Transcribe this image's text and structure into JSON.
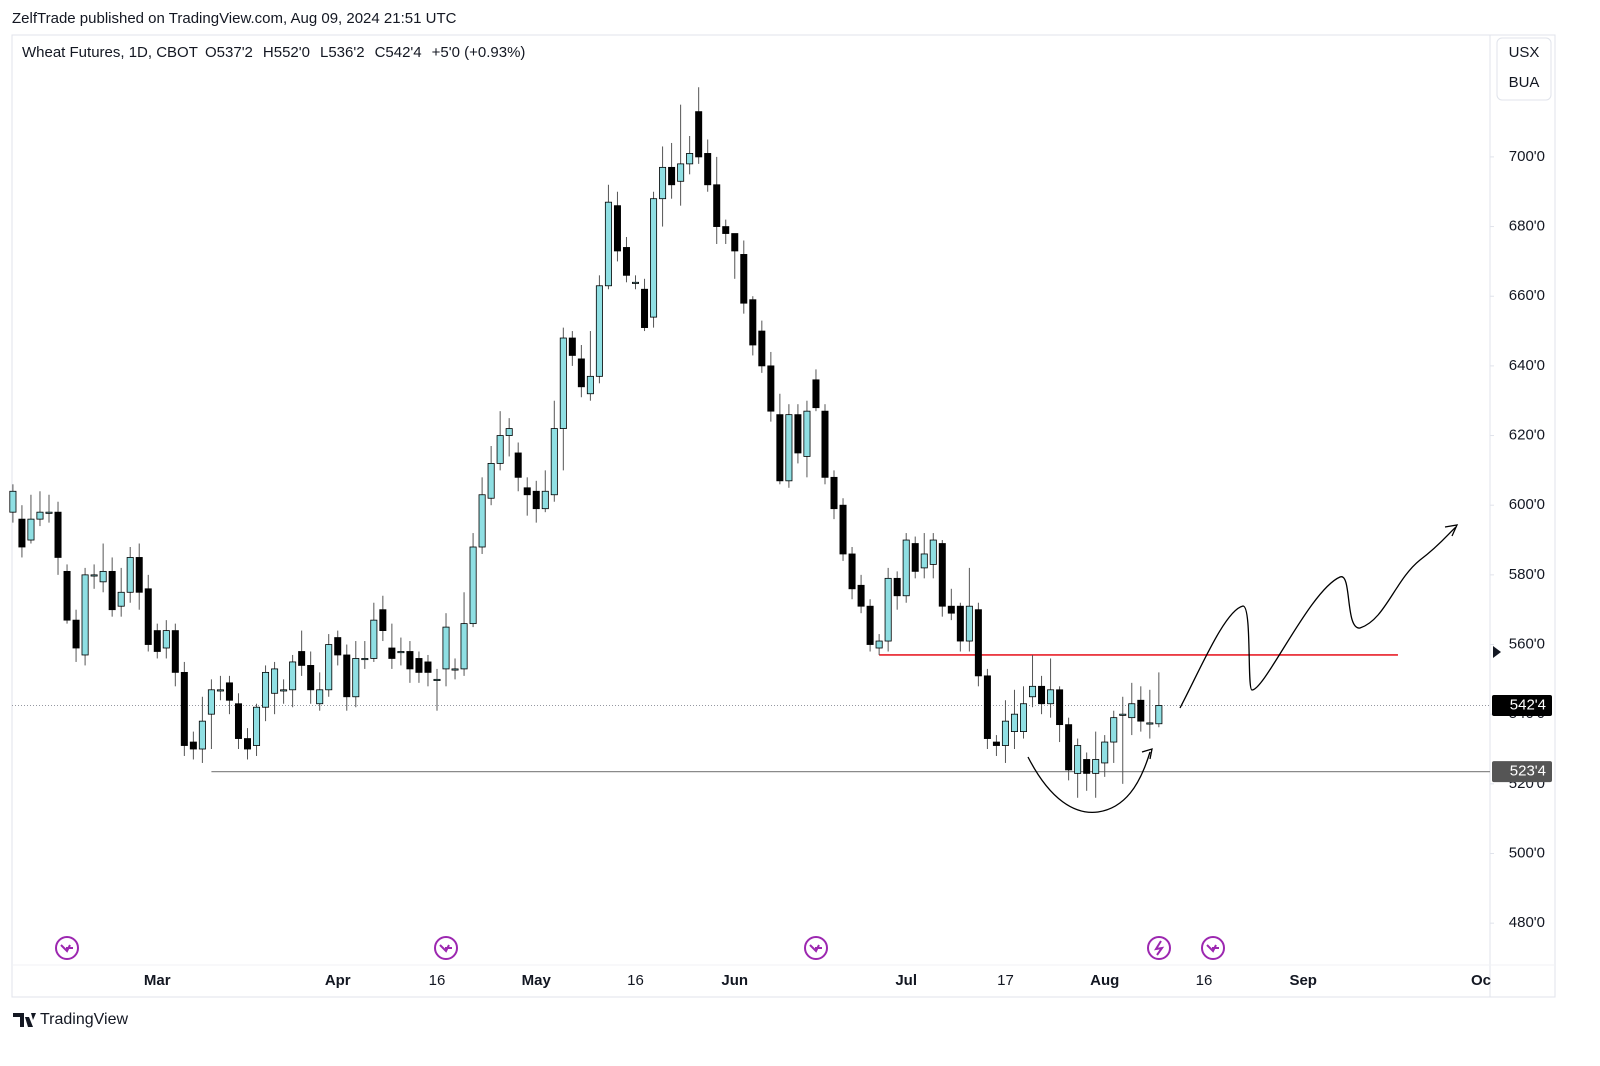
{
  "published": "ZelfTrade published on TradingView.com, Aug 09, 2024 21:51 UTC",
  "footer": "TradingView",
  "chart_data": {
    "type": "candlestick",
    "title": "Wheat Futures, 1D, CBOT",
    "ohlc_labels": [
      "O537'2",
      "H552'0",
      "L536'2",
      "C542'4",
      "+5'0 (+0.93%)"
    ],
    "units": [
      "USX",
      "BUA"
    ],
    "up_color": "#8fdfe3",
    "down_color": "#000000",
    "wick_color": "#555555",
    "open": [
      598,
      596,
      590,
      596,
      598,
      598,
      581,
      567,
      557,
      580,
      578,
      581,
      571,
      575,
      585,
      576,
      564,
      559,
      564,
      552,
      532,
      530,
      540,
      547,
      549,
      543,
      533,
      531,
      542,
      546,
      547,
      547,
      558,
      554,
      543,
      547,
      562,
      557,
      545,
      556,
      556,
      570,
      559,
      558,
      558,
      556,
      555,
      550,
      553,
      553,
      553,
      566,
      588,
      602,
      612,
      620,
      615,
      605,
      604,
      599,
      603,
      622,
      648,
      642,
      632,
      637,
      663,
      686,
      674,
      664,
      662,
      654,
      688,
      697,
      693,
      698,
      713,
      701,
      692,
      680,
      678,
      672,
      659,
      650,
      640,
      626,
      607,
      626,
      614,
      636,
      627,
      608,
      600,
      586,
      577,
      571,
      559,
      561,
      579,
      574,
      589,
      582,
      583,
      589,
      571,
      571,
      561,
      570,
      551,
      532,
      531,
      535,
      535,
      545,
      548,
      543,
      547,
      537,
      523,
      527,
      523,
      526,
      532,
      540,
      539,
      544,
      537.5,
      537.25
    ],
    "high": [
      606,
      600,
      603,
      604,
      603,
      601,
      583,
      570,
      582,
      583,
      589,
      585,
      582,
      588,
      589,
      580,
      566,
      567,
      566,
      555,
      535,
      545,
      550,
      551,
      551,
      546,
      536,
      543,
      554,
      555,
      550,
      557,
      564,
      558,
      552,
      563,
      564,
      560,
      561,
      561,
      572,
      574,
      566,
      562,
      561,
      558,
      557,
      553,
      569,
      556,
      575,
      592,
      608,
      617,
      627,
      625,
      618,
      608,
      607,
      610,
      630,
      651,
      650,
      646,
      650,
      666,
      692,
      690,
      677,
      666,
      665,
      690,
      703,
      704,
      715,
      706,
      720,
      705,
      700,
      682,
      678,
      676,
      660,
      653,
      644,
      632,
      629,
      629,
      630,
      639,
      629,
      610,
      602,
      588,
      580,
      573,
      563,
      582,
      581,
      592,
      591,
      592,
      592,
      590,
      576,
      572,
      582,
      572,
      553,
      534,
      544,
      547,
      548,
      557,
      551,
      556,
      548,
      539,
      533,
      529,
      535,
      534,
      541,
      545,
      549,
      548,
      547,
      552
    ],
    "low": [
      595,
      585,
      589,
      594,
      595,
      580,
      566,
      555,
      554,
      576,
      575,
      568,
      568,
      572,
      570,
      558,
      556,
      556,
      548,
      528,
      527,
      526,
      530,
      544,
      540,
      530,
      527,
      528,
      538,
      540,
      543,
      542,
      551,
      543,
      541,
      545,
      554,
      541,
      542,
      553,
      555,
      561,
      553,
      554,
      549,
      549,
      548,
      541,
      548,
      550,
      551,
      565,
      586,
      600,
      610,
      614,
      604,
      597,
      595,
      598,
      601,
      610,
      640,
      631,
      630,
      635,
      662,
      670,
      664,
      662,
      650,
      651,
      680,
      688,
      686,
      695,
      698,
      690,
      675,
      675,
      665,
      655,
      643,
      638,
      624,
      606,
      605,
      612,
      608,
      627,
      606,
      596,
      584,
      573,
      569,
      558,
      557,
      558,
      570,
      572,
      579,
      579,
      579,
      568,
      567,
      558,
      558,
      548,
      530,
      528,
      526,
      530,
      533,
      542,
      540,
      539,
      532,
      521,
      516,
      518,
      516,
      522,
      526,
      520,
      534,
      535,
      533,
      536.25
    ],
    "close": [
      604,
      588,
      596,
      598,
      598,
      585,
      567,
      559,
      580,
      580,
      581,
      570,
      575,
      585,
      575,
      560,
      558,
      564,
      552,
      531,
      530,
      538,
      547,
      547,
      544,
      533,
      530,
      542,
      552,
      553,
      547,
      555,
      554,
      547,
      547,
      560,
      557,
      545,
      556,
      556,
      567,
      564,
      556,
      558,
      553,
      552,
      552,
      550,
      565,
      553,
      566,
      588,
      603,
      612,
      620,
      622,
      608,
      603,
      599,
      604,
      622,
      648,
      643,
      634,
      637,
      663,
      687,
      673,
      666,
      664,
      651,
      688,
      697,
      692,
      698,
      701,
      700,
      692,
      680,
      678,
      673,
      658,
      646,
      640,
      627,
      607,
      626,
      615,
      627,
      628,
      608,
      599,
      586,
      576,
      571,
      560,
      561,
      579,
      574,
      590,
      581,
      586,
      590,
      571,
      569,
      561,
      571,
      551,
      533,
      531,
      538,
      540,
      543,
      548,
      543,
      547,
      537,
      524,
      531,
      523,
      527,
      532,
      539,
      540,
      543,
      538,
      537.5,
      542.5
    ],
    "xlim": [
      -0.1,
      163.7
    ],
    "xticks": [
      {
        "value": 16,
        "label": "Mar"
      },
      {
        "value": 36,
        "label": "Apr"
      },
      {
        "value": 47,
        "label": "16"
      },
      {
        "value": 58,
        "label": "May"
      },
      {
        "value": 69,
        "label": "16"
      },
      {
        "value": 80,
        "label": "Jun"
      },
      {
        "value": 99,
        "label": "Jul"
      },
      {
        "value": 110,
        "label": "17"
      },
      {
        "value": 121,
        "label": "Aug"
      },
      {
        "value": 132,
        "label": "16"
      },
      {
        "value": 143,
        "label": "Sep"
      },
      {
        "value": 162.7,
        "label": "Oc"
      }
    ],
    "ylim": [
      458.8,
      735
    ],
    "yticks": [
      {
        "value": 480,
        "label": "480'0"
      },
      {
        "value": 500,
        "label": "500'0"
      },
      {
        "value": 520,
        "label": "520'0"
      },
      {
        "value": 540,
        "label": "540'0"
      },
      {
        "value": 560,
        "label": "560'0"
      },
      {
        "value": 580,
        "label": "580'0"
      },
      {
        "value": 600,
        "label": "600'0"
      },
      {
        "value": 620,
        "label": "620'0"
      },
      {
        "value": 640,
        "label": "640'0"
      },
      {
        "value": 660,
        "label": "660'0"
      },
      {
        "value": 680,
        "label": "680'0"
      },
      {
        "value": 700,
        "label": "700'0"
      }
    ],
    "grid": false,
    "last_price": {
      "value": 542.5,
      "label": "542'4"
    },
    "hlines": [
      {
        "value": 523.5,
        "label": "523'4",
        "color": "#8a8a8a",
        "from": 22
      },
      {
        "value": 557,
        "color": "#e8202a",
        "from": 96,
        "to": 153.5
      }
    ]
  }
}
